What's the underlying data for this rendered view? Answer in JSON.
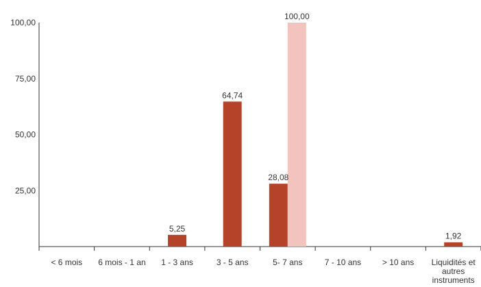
{
  "chart_data": {
    "type": "bar",
    "title": "",
    "xlabel": "",
    "ylabel": "",
    "ylim": [
      0,
      100
    ],
    "yticks": [
      25,
      50,
      75,
      100
    ],
    "ytick_labels": [
      "25,00",
      "50,00",
      "75,00",
      "100,00"
    ],
    "categories": [
      [
        "< 6 mois"
      ],
      [
        "6 mois - 1 an"
      ],
      [
        "1 - 3 ans"
      ],
      [
        "3 - 5 ans"
      ],
      [
        "5- 7 ans"
      ],
      [
        "7 - 10 ans"
      ],
      [
        "> 10 ans"
      ],
      [
        "Liquidités et",
        "autres",
        "instruments"
      ]
    ],
    "series": [
      {
        "color": "#b5432a",
        "values": [
          null,
          null,
          5.25,
          64.74,
          28.08,
          null,
          null,
          1.92
        ],
        "labels": [
          "",
          "",
          "5,25",
          "64,74",
          "28,08",
          "",
          "",
          "1,92"
        ]
      },
      {
        "color": "#f2c4bd",
        "values": [
          null,
          null,
          null,
          null,
          100,
          null,
          null,
          null
        ],
        "labels": [
          "",
          "",
          "",
          "",
          "100,00",
          "",
          "",
          ""
        ]
      }
    ],
    "grid": false,
    "legend": "none"
  }
}
